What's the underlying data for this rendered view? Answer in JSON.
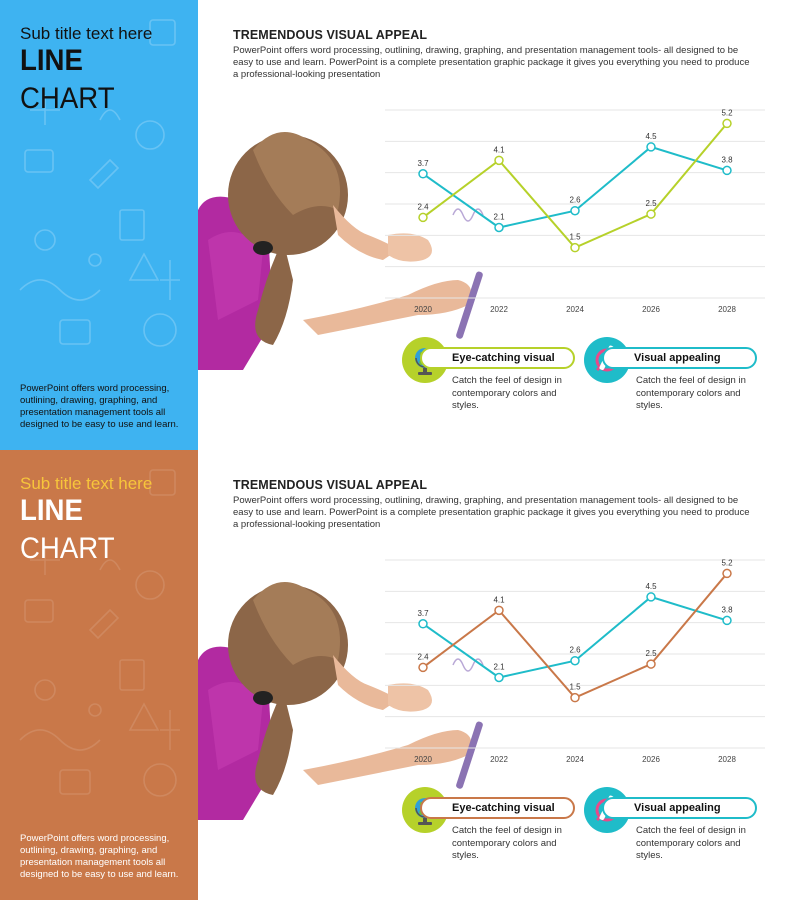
{
  "slides": [
    {
      "panel": {
        "subtitle": "Sub title text here",
        "title_line1": "LINE",
        "title_line2": "CHART",
        "description": "PowerPoint offers word processing, outlining, drawing, graphing, and presentation management tools all designed to be easy to use and learn.",
        "bg_color": "#3eb3f1",
        "subtitle_color": "#111111",
        "description_color": "#111111"
      },
      "heading": "TREMENDOUS VISUAL APPEAL",
      "paragraph": "PowerPoint offers word processing, outlining, drawing, graphing, and presentation management tools- all designed to be easy to use and learn. PowerPoint is a complete presentation graphic package it gives you everything you need to produce a professional-looking presentation",
      "features": [
        {
          "icon": "globe-icon",
          "title": "Eye-catching visual",
          "text": "Catch the feel of design in contemporary colors and styles.",
          "border_color": "#b6d12a"
        },
        {
          "icon": "pencil-cancel-icon",
          "title": "Visual appealing",
          "text": "Catch the feel of design in contemporary colors and styles.",
          "border_color": "#1fbcc9"
        }
      ]
    },
    {
      "panel": {
        "subtitle": "Sub title text here",
        "title_line1": "LINE",
        "title_line2": "CHART",
        "description": "PowerPoint offers word processing, outlining, drawing, graphing, and presentation management tools all designed to be easy to use and learn.",
        "bg_color": "#c97849",
        "subtitle_color": "#f7c53b",
        "description_color": "#ffffff"
      },
      "heading": "TREMENDOUS VISUAL APPEAL",
      "paragraph": "PowerPoint offers word processing, outlining, drawing, graphing, and presentation management tools- all designed to be easy to use and learn. PowerPoint is a complete presentation graphic package it gives you everything you need to produce a professional-looking presentation",
      "features": [
        {
          "icon": "globe-icon",
          "title": "Eye-catching visual",
          "text": "Catch the feel of design in contemporary colors and styles.",
          "border_color": "#c97849"
        },
        {
          "icon": "pencil-cancel-icon",
          "title": "Visual appealing",
          "text": "Catch the feel of design in contemporary colors and styles.",
          "border_color": "#1fbcc9"
        }
      ]
    }
  ],
  "chart_data": [
    {
      "type": "line",
      "title": "",
      "xlabel": "",
      "ylabel": "",
      "grid": true,
      "x": [
        2020,
        2022,
        2024,
        2026,
        2028
      ],
      "ylim": [
        0,
        5.6
      ],
      "series": [
        {
          "values": [
            3.7,
            2.1,
            2.6,
            4.5,
            3.8
          ],
          "color": "#1fbcc9"
        },
        {
          "values": [
            2.4,
            4.1,
            1.5,
            2.5,
            5.2
          ],
          "color": "#b6d12a"
        }
      ]
    },
    {
      "type": "line",
      "title": "",
      "xlabel": "",
      "ylabel": "",
      "grid": true,
      "x": [
        2020,
        2022,
        2024,
        2026,
        2028
      ],
      "ylim": [
        0,
        5.6
      ],
      "series": [
        {
          "values": [
            3.7,
            2.1,
            2.6,
            4.5,
            3.8
          ],
          "color": "#1fbcc9"
        },
        {
          "values": [
            2.4,
            4.1,
            1.5,
            2.5,
            5.2
          ],
          "color": "#c97849"
        }
      ]
    }
  ]
}
